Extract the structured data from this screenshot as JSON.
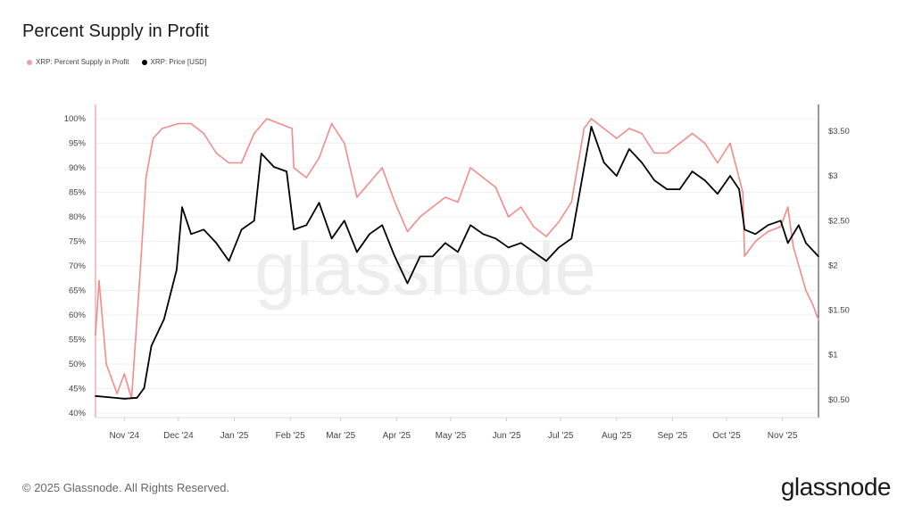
{
  "title": "Percent Supply in Profit",
  "footer": "© 2025 Glassnode. All Rights Reserved.",
  "logo": "glassnode",
  "watermark": "glassnode",
  "chart_data": {
    "type": "line",
    "title": "Percent Supply in Profit",
    "legend_position": "top-left",
    "grid": true,
    "x_ticks": [
      {
        "label": "Nov '24",
        "date": "2024-11-01"
      },
      {
        "label": "Dec '24",
        "date": "2024-12-01"
      },
      {
        "label": "Jan '25",
        "date": "2025-01-01"
      },
      {
        "label": "Feb '25",
        "date": "2025-02-01"
      },
      {
        "label": "Mar '25",
        "date": "2025-03-01"
      },
      {
        "label": "Apr '25",
        "date": "2025-04-01"
      },
      {
        "label": "May '25",
        "date": "2025-05-01"
      },
      {
        "label": "Jun '25",
        "date": "2025-06-01"
      },
      {
        "label": "Jul '25",
        "date": "2025-07-01"
      },
      {
        "label": "Aug '25",
        "date": "2025-08-01"
      },
      {
        "label": "Sep '25",
        "date": "2025-09-01"
      },
      {
        "label": "Oct '25",
        "date": "2025-10-01"
      },
      {
        "label": "Nov '25",
        "date": "2025-11-01"
      }
    ],
    "xlim": [
      "2024-10-16",
      "2025-11-21"
    ],
    "y_left": {
      "ylim": [
        40,
        100
      ],
      "ticks": [
        "40%",
        "45%",
        "50%",
        "55%",
        "60%",
        "65%",
        "70%",
        "75%",
        "80%",
        "85%",
        "90%",
        "95%",
        "100%"
      ],
      "tick_values": [
        40,
        45,
        50,
        55,
        60,
        65,
        70,
        75,
        80,
        85,
        90,
        95,
        100
      ]
    },
    "y_right": {
      "ylim": [
        0,
        3.85
      ],
      "ticks": [
        "$0.50",
        "$1",
        "$1.50",
        "$2",
        "$2.50",
        "$3",
        "$3.50"
      ],
      "tick_values": [
        0.5,
        1,
        1.5,
        2,
        2.5,
        3,
        3.5
      ]
    },
    "series": [
      {
        "name": "XRP: Percent Supply in Profit",
        "color": "#f28b8b",
        "axis": "left",
        "dates": [
          "2024-10-16",
          "2024-10-18",
          "2024-10-22",
          "2024-10-28",
          "2024-11-01",
          "2024-11-05",
          "2024-11-10",
          "2024-11-13",
          "2024-11-17",
          "2024-11-22",
          "2024-12-01",
          "2024-12-08",
          "2024-12-15",
          "2024-12-22",
          "2024-12-29",
          "2025-01-05",
          "2025-01-12",
          "2025-01-19",
          "2025-01-26",
          "2025-02-02",
          "2025-02-03",
          "2025-02-10",
          "2025-02-17",
          "2025-02-24",
          "2025-03-03",
          "2025-03-10",
          "2025-03-17",
          "2025-03-24",
          "2025-03-31",
          "2025-04-07",
          "2025-04-14",
          "2025-04-21",
          "2025-04-28",
          "2025-05-05",
          "2025-05-12",
          "2025-05-19",
          "2025-05-26",
          "2025-06-02",
          "2025-06-09",
          "2025-06-16",
          "2025-06-23",
          "2025-06-30",
          "2025-07-07",
          "2025-07-14",
          "2025-07-18",
          "2025-07-25",
          "2025-08-01",
          "2025-08-08",
          "2025-08-15",
          "2025-08-22",
          "2025-08-29",
          "2025-09-05",
          "2025-09-12",
          "2025-09-19",
          "2025-09-26",
          "2025-10-03",
          "2025-10-10",
          "2025-10-11",
          "2025-10-17",
          "2025-10-24",
          "2025-10-31",
          "2025-11-04",
          "2025-11-07",
          "2025-11-14",
          "2025-11-18",
          "2025-11-21"
        ],
        "values": [
          56,
          67,
          50,
          44,
          48,
          43,
          70,
          88,
          96,
          98,
          99,
          99,
          97,
          93,
          91,
          91,
          97,
          100,
          99,
          98,
          90,
          88,
          92,
          99,
          95,
          84,
          87,
          90,
          83,
          77,
          80,
          82,
          84,
          83,
          90,
          88,
          86,
          80,
          82,
          78,
          76,
          79,
          83,
          98,
          100,
          98,
          96,
          98,
          97,
          93,
          93,
          95,
          97,
          95,
          91,
          95,
          85,
          72,
          75,
          77,
          78,
          82,
          74,
          65,
          62,
          59
        ]
      },
      {
        "name": "XRP: Price [USD]",
        "color": "#000000",
        "axis": "right",
        "dates": [
          "2024-10-16",
          "2024-11-01",
          "2024-11-08",
          "2024-11-12",
          "2024-11-16",
          "2024-11-23",
          "2024-11-30",
          "2024-12-03",
          "2024-12-08",
          "2024-12-15",
          "2024-12-22",
          "2024-12-29",
          "2025-01-05",
          "2025-01-12",
          "2025-01-16",
          "2025-01-23",
          "2025-01-30",
          "2025-02-03",
          "2025-02-10",
          "2025-02-17",
          "2025-02-24",
          "2025-03-03",
          "2025-03-10",
          "2025-03-17",
          "2025-03-24",
          "2025-03-31",
          "2025-04-07",
          "2025-04-14",
          "2025-04-21",
          "2025-04-28",
          "2025-05-05",
          "2025-05-12",
          "2025-05-19",
          "2025-05-26",
          "2025-06-02",
          "2025-06-09",
          "2025-06-16",
          "2025-06-23",
          "2025-06-30",
          "2025-07-07",
          "2025-07-11",
          "2025-07-18",
          "2025-07-25",
          "2025-08-01",
          "2025-08-08",
          "2025-08-15",
          "2025-08-22",
          "2025-08-29",
          "2025-09-05",
          "2025-09-12",
          "2025-09-19",
          "2025-09-26",
          "2025-10-03",
          "2025-10-08",
          "2025-10-11",
          "2025-10-17",
          "2025-10-24",
          "2025-10-31",
          "2025-11-04",
          "2025-11-10",
          "2025-11-14",
          "2025-11-21"
        ],
        "values": [
          0.54,
          0.51,
          0.52,
          0.63,
          1.1,
          1.4,
          1.95,
          2.65,
          2.35,
          2.4,
          2.25,
          2.05,
          2.4,
          2.5,
          3.25,
          3.1,
          3.05,
          2.4,
          2.45,
          2.7,
          2.3,
          2.5,
          2.15,
          2.35,
          2.45,
          2.1,
          1.8,
          2.1,
          2.1,
          2.25,
          2.15,
          2.45,
          2.35,
          2.3,
          2.2,
          2.25,
          2.15,
          2.05,
          2.2,
          2.3,
          2.75,
          3.55,
          3.15,
          3.0,
          3.3,
          3.15,
          2.95,
          2.85,
          2.85,
          3.05,
          2.95,
          2.8,
          3.0,
          2.85,
          2.4,
          2.35,
          2.45,
          2.5,
          2.25,
          2.45,
          2.25,
          2.1
        ]
      }
    ]
  }
}
